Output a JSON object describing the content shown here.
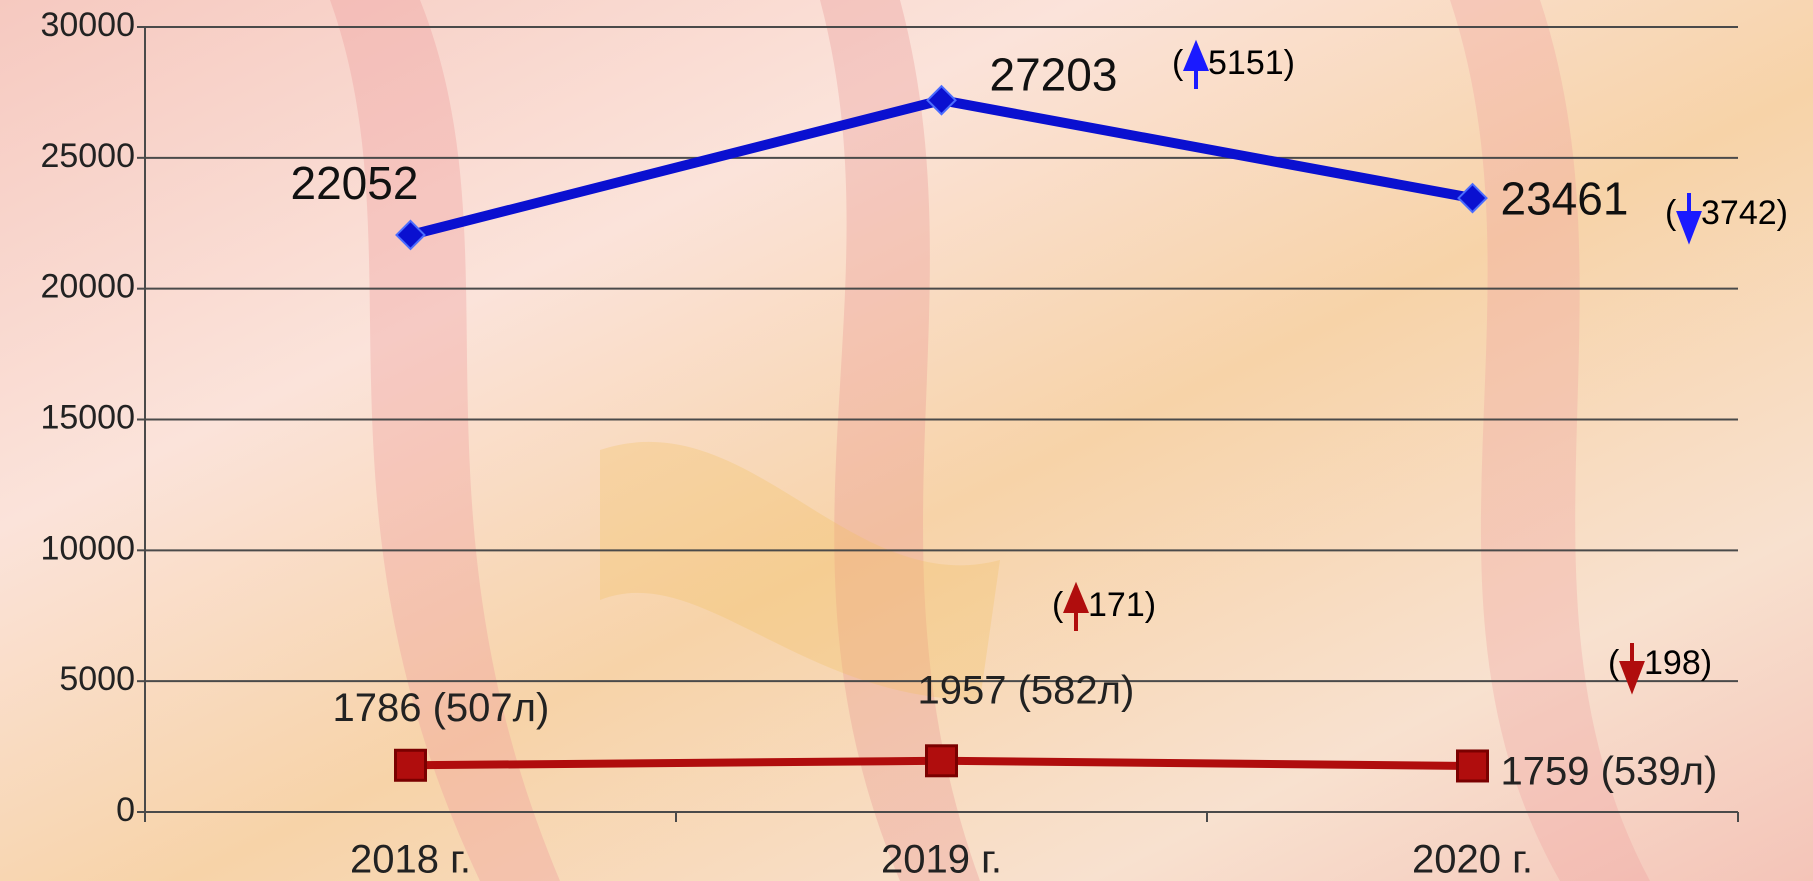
{
  "chart_data": {
    "type": "line",
    "categories": [
      "2018 г.",
      "2019 г.",
      "2020 г."
    ],
    "series": [
      {
        "color": "#0a10d0",
        "marker": "diamond",
        "values": [
          22052,
          27203,
          23461
        ]
      },
      {
        "color": "#b00d0d",
        "marker": "square",
        "values": [
          1786,
          1957,
          1759
        ],
        "value_labels": [
          "1786 (507л)",
          "1957 (582л)",
          "1759 (539л)"
        ]
      }
    ],
    "annotations": [
      {
        "open": "(",
        "text": "5151)",
        "arrow": "up",
        "color": "#1a1aff"
      },
      {
        "open": "(",
        "text": "3742)",
        "arrow": "down",
        "color": "#1a1aff"
      },
      {
        "open": "(",
        "text": "171)",
        "arrow": "up",
        "color": "#b00d0d"
      },
      {
        "open": "(",
        "text": "198)",
        "arrow": "down",
        "color": "#b00d0d"
      }
    ],
    "ylim": [
      0,
      30000
    ],
    "yticks": [
      0,
      5000,
      10000,
      15000,
      20000,
      25000,
      30000
    ],
    "grid": true
  }
}
